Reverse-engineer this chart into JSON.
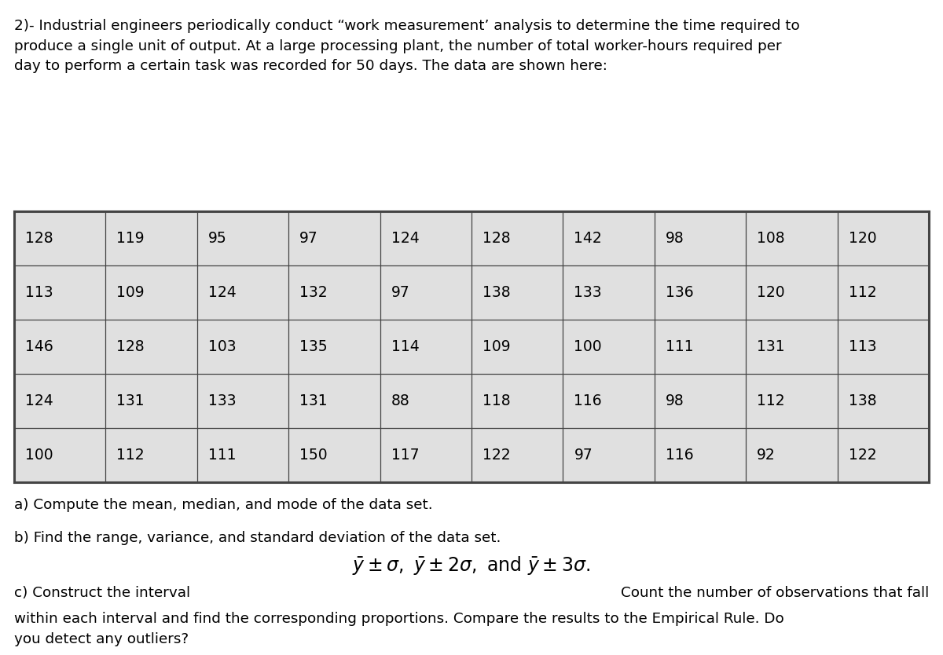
{
  "title_text": "2)- Industrial engineers periodically conduct “work measurement’ analysis to determine the time required to\nproduce a single unit of output. At a large processing plant, the number of total worker-hours required per\nday to perform a certain task was recorded for 50 days. The data are shown here:",
  "table_data": [
    [
      128,
      119,
      95,
      97,
      124,
      128,
      142,
      98,
      108,
      120
    ],
    [
      113,
      109,
      124,
      132,
      97,
      138,
      133,
      136,
      120,
      112
    ],
    [
      146,
      128,
      103,
      135,
      114,
      109,
      100,
      111,
      131,
      113
    ],
    [
      124,
      131,
      133,
      131,
      88,
      118,
      116,
      98,
      112,
      138
    ],
    [
      100,
      112,
      111,
      150,
      117,
      122,
      97,
      116,
      92,
      122
    ]
  ],
  "part_a": "a) Compute the mean, median, and mode of the data set.",
  "part_b": "b) Find the range, variance, and standard deviation of the data set.",
  "part_c_prefix": "c) Construct the interval",
  "part_c_suffix_right": "Count the number of observations that fall",
  "part_c_last": "within each interval and find the corresponding proportions. Compare the results to the Empirical Rule. Do\nyou detect any outliers?",
  "bg_color": "#ffffff",
  "table_bg": "#e0e0e0",
  "table_border_color": "#444444",
  "text_color": "#000000",
  "font_size_title": 13.2,
  "font_size_table": 13.5,
  "font_size_text": 13.2,
  "font_size_formula": 17
}
